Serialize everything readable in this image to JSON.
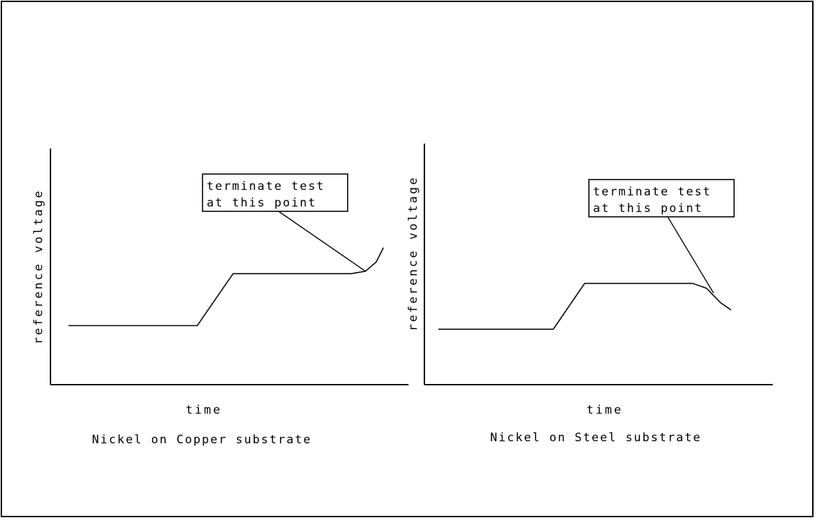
{
  "chart_data": [
    {
      "type": "line",
      "title": "Nickel on Copper substrate",
      "xlabel": "time",
      "ylabel": "reference voltage",
      "annotation": {
        "lines": [
          "terminate test",
          "at this point"
        ]
      },
      "xlim": [
        0,
        100
      ],
      "ylim": [
        0,
        100
      ],
      "series": [
        {
          "points": [
            [
              5,
              25
            ],
            [
              41,
              25
            ],
            [
              51,
              47
            ],
            [
              84,
              47
            ],
            [
              88,
              48
            ],
            [
              91,
              52
            ],
            [
              93,
              58
            ]
          ]
        }
      ],
      "annotation_target": [
        88,
        48
      ]
    },
    {
      "type": "line",
      "title": "Nickel on Steel substrate",
      "xlabel": "time",
      "ylabel": "reference voltage",
      "annotation": {
        "lines": [
          "terminate test",
          "at this point"
        ]
      },
      "xlim": [
        0,
        100
      ],
      "ylim": [
        0,
        100
      ],
      "series": [
        {
          "points": [
            [
              4,
              23
            ],
            [
              37,
              23
            ],
            [
              46,
              42
            ],
            [
              77,
              42
            ],
            [
              81,
              40
            ],
            [
              85,
              34
            ],
            [
              88,
              31
            ]
          ]
        }
      ],
      "annotation_target": [
        83,
        38
      ]
    }
  ]
}
